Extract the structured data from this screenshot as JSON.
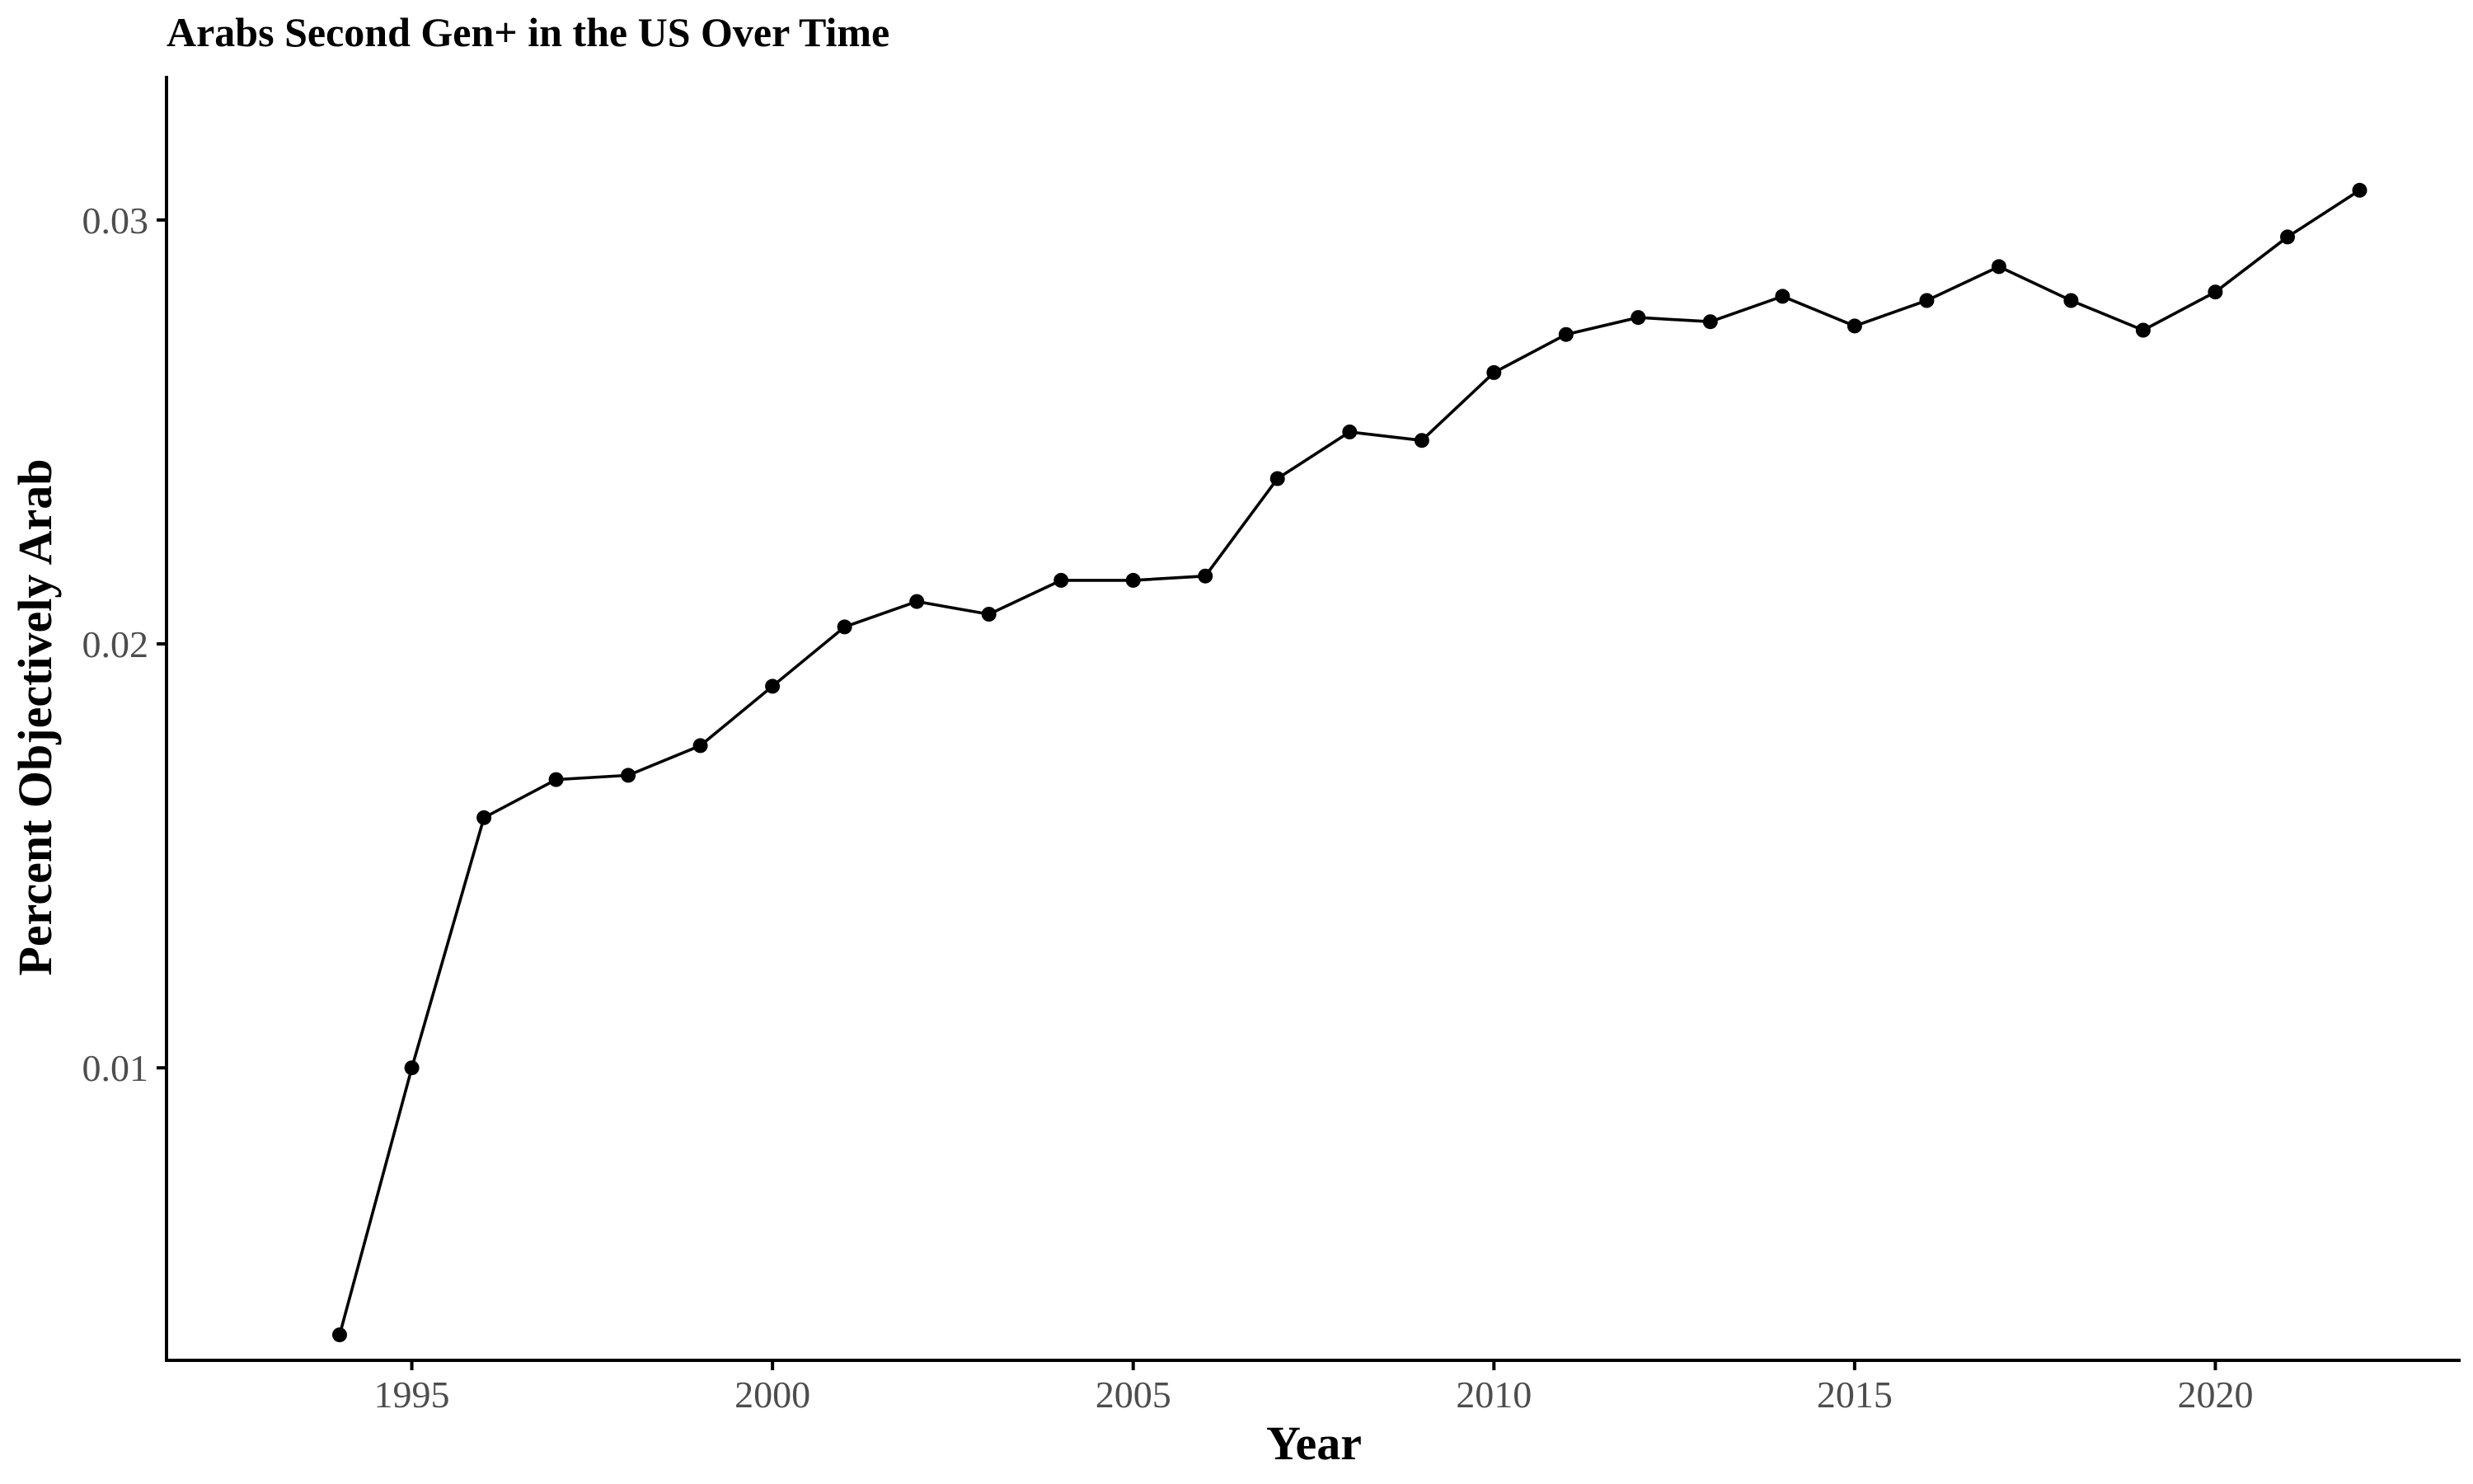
{
  "chart_data": {
    "type": "line",
    "title": "Arabs Second Gen+ in the US Over Time",
    "xlabel": "Year",
    "ylabel": "Percent Objectively Arab",
    "xlim": [
      1991.6,
      2023.4
    ],
    "ylim": [
      0.0031,
      0.0334
    ],
    "x_ticks": [
      1995,
      2000,
      2005,
      2010,
      2015,
      2020
    ],
    "x_tick_labels": [
      "1995",
      "2000",
      "2005",
      "2010",
      "2015",
      "2020"
    ],
    "y_ticks": [
      0.01,
      0.02,
      0.03
    ],
    "y_tick_labels": [
      "0.01",
      "0.02",
      "0.03"
    ],
    "grid": false,
    "legend": "none",
    "line_color": "#000000",
    "x": [
      1994,
      1995,
      1996,
      1997,
      1998,
      1999,
      2000,
      2001,
      2002,
      2003,
      2004,
      2005,
      2006,
      2007,
      2008,
      2009,
      2010,
      2011,
      2012,
      2013,
      2014,
      2015,
      2016,
      2017,
      2018,
      2019,
      2020,
      2021,
      2022
    ],
    "y": [
      0.0037,
      0.01,
      0.0159,
      0.0168,
      0.0169,
      0.0176,
      0.019,
      0.0204,
      0.021,
      0.0207,
      0.0215,
      0.0215,
      0.0216,
      0.0239,
      0.025,
      0.0248,
      0.0264,
      0.0273,
      0.0277,
      0.0276,
      0.0282,
      0.0275,
      0.0281,
      0.0289,
      0.0281,
      0.0274,
      0.0283,
      0.0296,
      0.0307
    ]
  }
}
